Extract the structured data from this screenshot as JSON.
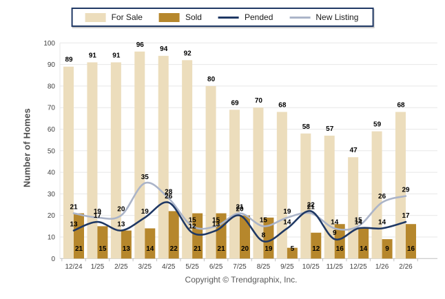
{
  "legend": {
    "items": [
      {
        "label": "For Sale",
        "type": "bar",
        "color": "#ECDDBC"
      },
      {
        "label": "Sold",
        "type": "bar",
        "color": "#B6872C"
      },
      {
        "label": "Pended",
        "type": "line",
        "color": "#1F3864"
      },
      {
        "label": "New Listing",
        "type": "line",
        "color": "#ABB4C8"
      }
    ]
  },
  "footer": {
    "copyright": "Copyright © Trendgraphix, Inc."
  },
  "chart_data": {
    "type": "bar",
    "subtype": "grouped bars with smoothed overlay lines",
    "categories": [
      "12/24",
      "1/25",
      "2/25",
      "3/25",
      "4/25",
      "5/25",
      "6/25",
      "7/25",
      "8/25",
      "9/25",
      "10/25",
      "11/25",
      "12/25",
      "1/26",
      "2/26"
    ],
    "series": [
      {
        "name": "For Sale",
        "type": "bar",
        "color": "#ECDDBC",
        "values": [
          89,
          91,
          91,
          96,
          94,
          92,
          80,
          69,
          70,
          68,
          58,
          57,
          47,
          59,
          68
        ]
      },
      {
        "name": "Sold",
        "type": "bar",
        "color": "#B6872C",
        "values": [
          21,
          15,
          13,
          14,
          22,
          21,
          21,
          20,
          19,
          5,
          12,
          16,
          14,
          9,
          16
        ]
      },
      {
        "name": "Pended",
        "type": "line",
        "color": "#1F3864",
        "values": [
          13,
          17,
          13,
          19,
          26,
          12,
          13,
          20,
          8,
          14,
          22,
          9,
          14,
          14,
          17
        ]
      },
      {
        "name": "New Listing",
        "type": "line",
        "color": "#ABB4C8",
        "values": [
          21,
          19,
          20,
          35,
          28,
          15,
          15,
          21,
          15,
          19,
          21,
          14,
          15,
          26,
          29
        ]
      }
    ],
    "title": "",
    "xlabel": "",
    "ylabel": "Number of Homes",
    "ylim": [
      0,
      100
    ],
    "ytick_step": 10,
    "grid": true,
    "legend_position": "top"
  }
}
